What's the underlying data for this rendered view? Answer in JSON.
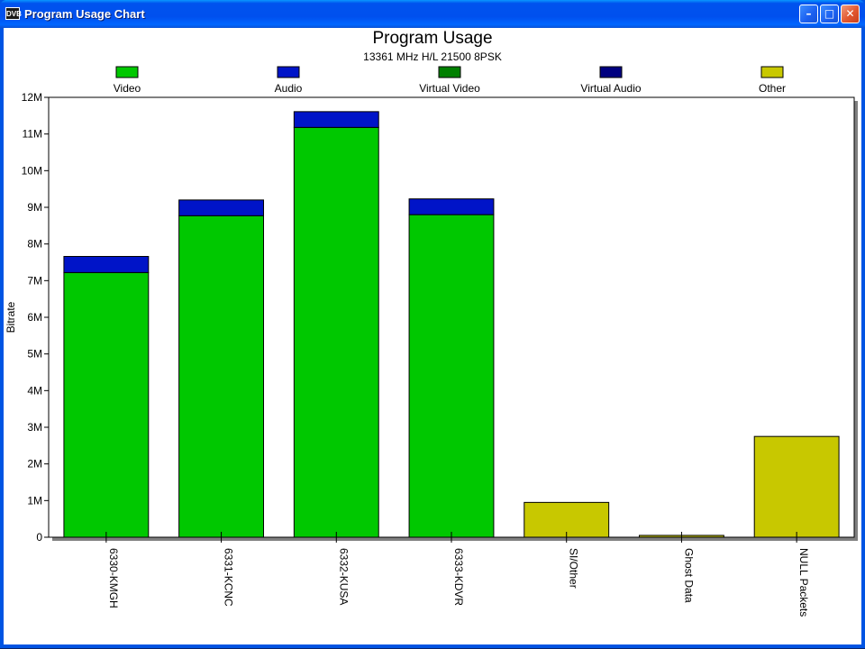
{
  "window": {
    "app_icon_text": "DVB",
    "title": "Program Usage Chart",
    "minimize_glyph": "–",
    "maximize_glyph": "□",
    "close_glyph": "✕"
  },
  "colors": {
    "video": "#00c800",
    "audio": "#0014c8",
    "virtual_video": "#008000",
    "virtual_audio": "#000080",
    "other": "#c8c800",
    "window_blue": "#0054e3",
    "close_red": "#e2572f"
  },
  "chart_data": {
    "type": "bar",
    "stacked": true,
    "title": "Program Usage",
    "subtitle": "13361 MHz H/L 21500 8PSK",
    "xlabel": "",
    "ylabel": "Bitrate",
    "ylim": [
      0,
      12000000
    ],
    "y_tick_values": [
      0,
      1000000,
      2000000,
      3000000,
      4000000,
      5000000,
      6000000,
      7000000,
      8000000,
      9000000,
      10000000,
      11000000,
      12000000
    ],
    "y_tick_labels": [
      "0",
      "1M",
      "2M",
      "3M",
      "4M",
      "5M",
      "6M",
      "7M",
      "8M",
      "9M",
      "10M",
      "11M",
      "12M"
    ],
    "legend_position": "top",
    "categories": [
      "6330-KMGH",
      "6331-KCNC",
      "6332-KUSA",
      "6333-KDVR",
      "SI/Other",
      "Ghost Data",
      "NULL Packets"
    ],
    "series": [
      {
        "name": "Video",
        "color": "#00c800",
        "values": [
          7220000,
          8770000,
          11180000,
          8800000,
          0,
          0,
          0
        ]
      },
      {
        "name": "Audio",
        "color": "#0014c8",
        "values": [
          440000,
          430000,
          430000,
          430000,
          0,
          0,
          0
        ]
      },
      {
        "name": "Virtual Video",
        "color": "#008000",
        "values": [
          0,
          0,
          0,
          0,
          0,
          0,
          0
        ]
      },
      {
        "name": "Virtual Audio",
        "color": "#000080",
        "values": [
          0,
          0,
          0,
          0,
          0,
          0,
          0
        ]
      },
      {
        "name": "Other",
        "color": "#c8c800",
        "values": [
          0,
          0,
          0,
          0,
          950000,
          50000,
          2750000
        ]
      }
    ]
  }
}
